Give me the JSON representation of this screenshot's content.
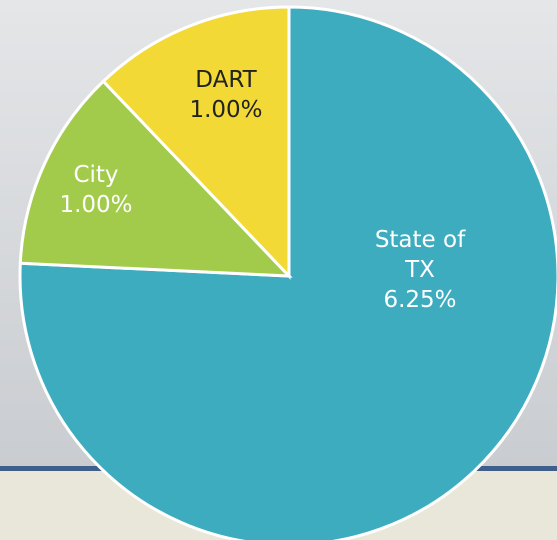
{
  "chart_data": {
    "type": "pie",
    "categories": [
      "State of TX",
      "City",
      "DART"
    ],
    "values": [
      6.25,
      1.0,
      1.0
    ],
    "value_labels": [
      "6.25%",
      "1.00%",
      "1.00%"
    ],
    "colors": [
      "#3eacbf",
      "#a3cb4b",
      "#f3d935"
    ]
  }
}
